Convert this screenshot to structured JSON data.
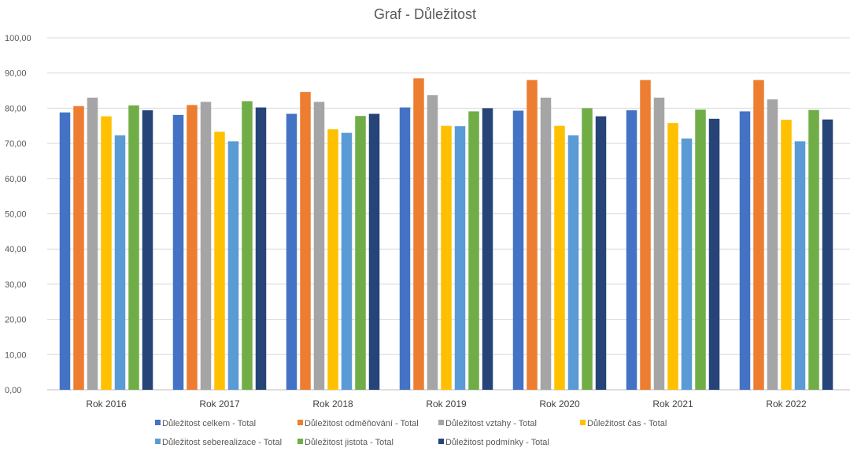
{
  "chart_data": {
    "type": "bar",
    "title": "Graf - Důležitost",
    "xlabel": "",
    "ylabel": "",
    "ylim": [
      0,
      100
    ],
    "yticks": [
      "0,00",
      "10,00",
      "20,00",
      "30,00",
      "40,00",
      "50,00",
      "60,00",
      "70,00",
      "80,00",
      "90,00",
      "100,00"
    ],
    "grid": true,
    "legend_position": "bottom",
    "categories": [
      "Rok 2016",
      "Rok 2017",
      "Rok 2018",
      "Rok 2019",
      "Rok 2020",
      "Rok 2021",
      "Rok 2022"
    ],
    "series": [
      {
        "name": "Důležitost celkem - Total",
        "color": "#4472C4",
        "values": [
          78.8,
          78.1,
          78.4,
          80.2,
          79.3,
          79.4,
          79.1
        ]
      },
      {
        "name": "Důležitost odměňování - Total",
        "color": "#ED7D31",
        "values": [
          80.6,
          80.9,
          84.6,
          88.5,
          88.0,
          88.0,
          88.0
        ]
      },
      {
        "name": "Důležitost vztahy - Total",
        "color": "#A5A5A5",
        "values": [
          83.0,
          81.8,
          81.8,
          83.7,
          83.0,
          83.0,
          82.5
        ]
      },
      {
        "name": "Důležitost čas - Total",
        "color": "#FFC000",
        "values": [
          77.7,
          73.3,
          74.0,
          75.0,
          75.0,
          75.8,
          76.7
        ]
      },
      {
        "name": "Důležitost seberealizace - Total",
        "color": "#5B9BD5",
        "values": [
          72.3,
          70.6,
          73.0,
          74.9,
          72.3,
          71.4,
          70.6
        ]
      },
      {
        "name": "Důležitost jistota - Total",
        "color": "#70AD47",
        "values": [
          80.8,
          82.0,
          77.8,
          79.1,
          80.0,
          79.6,
          79.5
        ]
      },
      {
        "name": "Důležitost podmínky - Total",
        "color": "#264478",
        "values": [
          79.4,
          80.2,
          78.4,
          80.0,
          77.7,
          77.0,
          76.8
        ]
      }
    ]
  }
}
